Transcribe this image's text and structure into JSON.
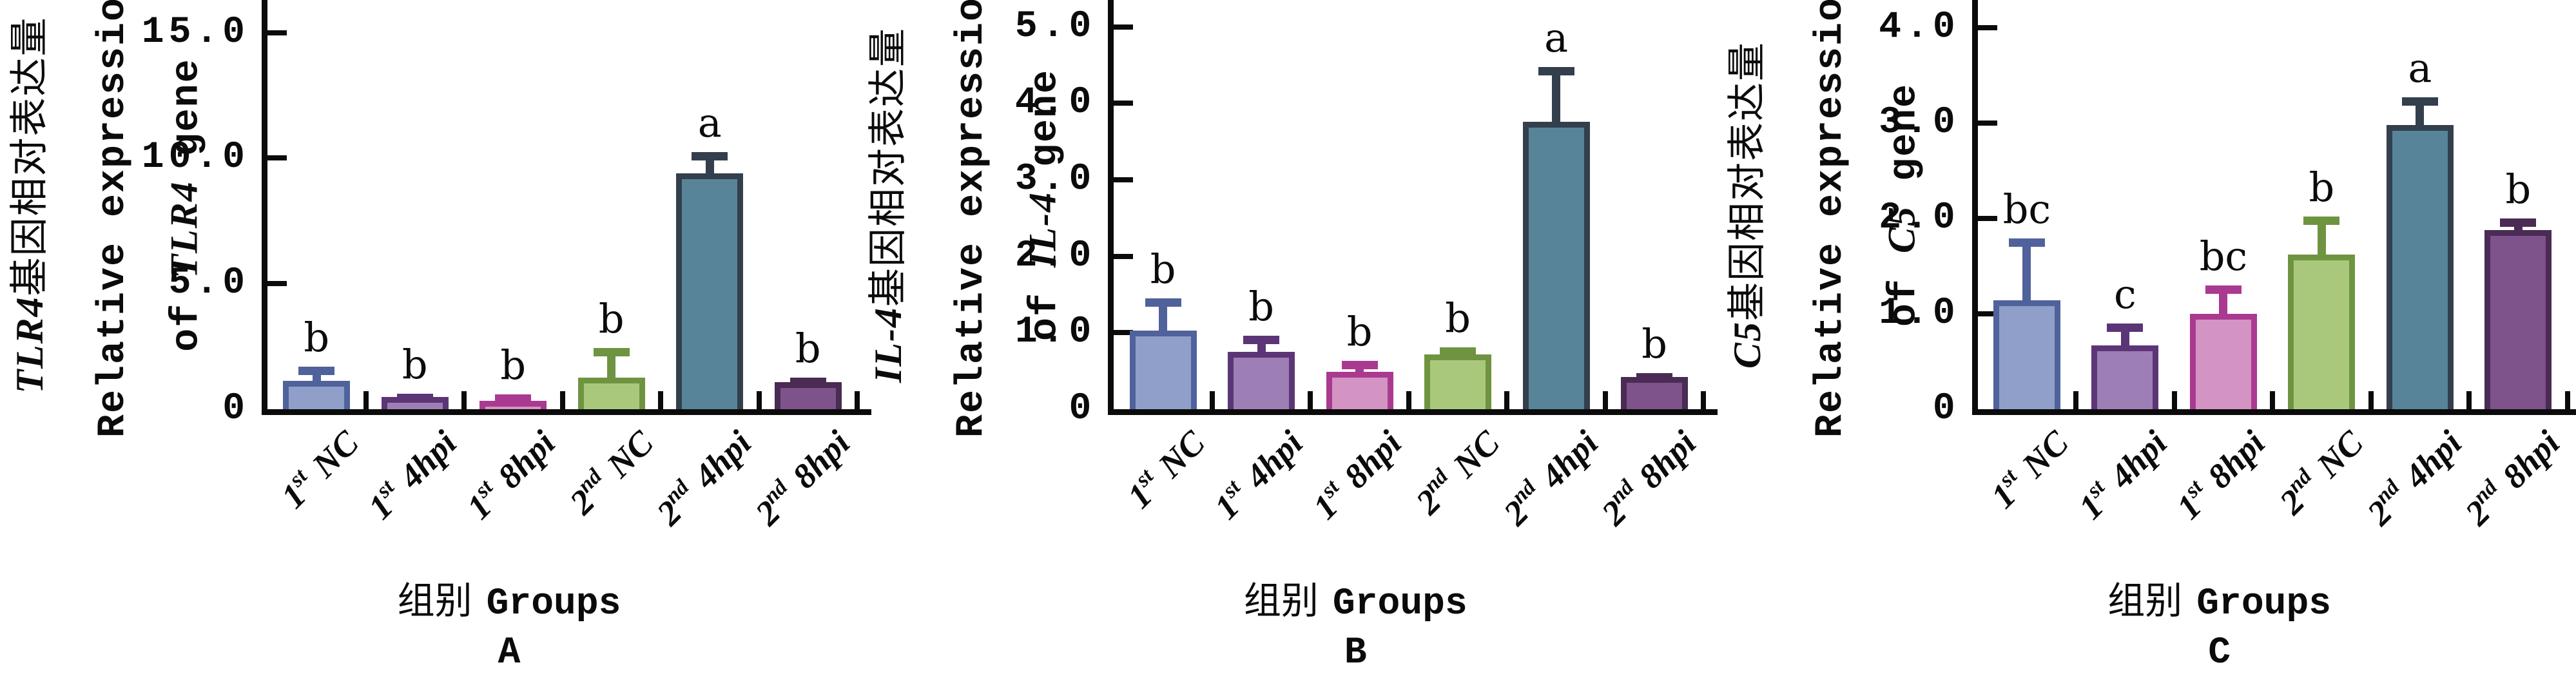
{
  "figure": {
    "background": "#ffffff",
    "axis_color": "#0b0b0b",
    "text_color": "#0b0b0b",
    "xlabel_cn": "组别",
    "xlabel_en": "Groups",
    "ylabel_en_line": "Relative expression",
    "ylabel_of": "of",
    "ylabel_gene_word": "gene",
    "ylabel_cn_suffix": "基因相对表达量"
  },
  "x_tick_labels": [
    {
      "num": "1",
      "sup": "st",
      "group": "NC"
    },
    {
      "num": "1",
      "sup": "st",
      "group": "4hpi"
    },
    {
      "num": "1",
      "sup": "st",
      "group": "8hpi"
    },
    {
      "num": "2",
      "sup": "nd",
      "group": "NC"
    },
    {
      "num": "2",
      "sup": "nd",
      "group": "4hpi"
    },
    {
      "num": "2",
      "sup": "nd",
      "group": "8hpi"
    }
  ],
  "bar_colors": {
    "fills": [
      "#8F9FC9",
      "#9D7FB5",
      "#D494C3",
      "#AAC87B",
      "#578499",
      "#7E528B"
    ],
    "borders": [
      "#50629B",
      "#5C3576",
      "#A93A90",
      "#6F9441",
      "#333F4C",
      "#4A2B54"
    ]
  },
  "chart_data": [
    {
      "panel_letter": "A",
      "type": "bar",
      "gene": "TLR4",
      "ylabel_cn": "TLR4基因相对表达量",
      "ylabel_en": "Relative expression of TLR4 gene",
      "xlabel": "组别 Groups",
      "categories": [
        "1st NC",
        "1st 4hpi",
        "1st 8hpi",
        "2nd NC",
        "2nd 4hpi",
        "2nd 8hpi"
      ],
      "values": [
        1.13,
        0.48,
        0.33,
        1.25,
        9.4,
        1.08
      ],
      "error_tops": [
        1.7,
        0.62,
        0.6,
        2.45,
        10.25,
        1.27
      ],
      "sig_letters": [
        "b",
        "b",
        "b",
        "b",
        "a",
        "b"
      ],
      "yticks": [
        {
          "label": "0",
          "value": 0
        },
        {
          "label": "5.0",
          "value": 5
        },
        {
          "label": "10.0",
          "value": 10
        },
        {
          "label": "15.0",
          "value": 15
        }
      ],
      "ylim": [
        0,
        16.3
      ],
      "grid": false,
      "legend": "none"
    },
    {
      "panel_letter": "B",
      "type": "bar",
      "gene": "IL-4",
      "ylabel_cn": "IL-4基因相对表达量",
      "ylabel_en": "Relative expression of IL-4 gene",
      "xlabel": "组别 Groups",
      "categories": [
        "1st NC",
        "1st 4hpi",
        "1st 8hpi",
        "2nd NC",
        "2nd 4hpi",
        "2nd 8hpi"
      ],
      "values": [
        1.03,
        0.75,
        0.49,
        0.72,
        3.76,
        0.42
      ],
      "error_tops": [
        1.45,
        0.96,
        0.63,
        0.81,
        4.47,
        0.47
      ],
      "sig_letters": [
        "b",
        "b",
        "b",
        "b",
        "a",
        "b"
      ],
      "yticks": [
        {
          "label": "0",
          "value": 0
        },
        {
          "label": "1.0",
          "value": 1
        },
        {
          "label": "2.0",
          "value": 2
        },
        {
          "label": "3.0",
          "value": 3
        },
        {
          "label": "4.0",
          "value": 4
        },
        {
          "label": "5.0",
          "value": 5
        }
      ],
      "ylim": [
        0,
        5.35
      ],
      "grid": false,
      "legend": "none"
    },
    {
      "panel_letter": "C",
      "type": "bar",
      "gene": "C5",
      "ylabel_cn": "C5基因相对表达量",
      "ylabel_en": "Relative expression of C5 gene",
      "xlabel": "组别 Groups",
      "categories": [
        "1st NC",
        "1st 4hpi",
        "1st 8hpi",
        "2nd NC",
        "2nd 4hpi",
        "2nd 8hpi"
      ],
      "values": [
        1.14,
        0.67,
        1.0,
        1.62,
        2.98,
        1.88
      ],
      "error_tops": [
        1.79,
        0.9,
        1.3,
        2.02,
        3.27,
        2.0
      ],
      "sig_letters": [
        "bc",
        "c",
        "bc",
        "b",
        "a",
        "b"
      ],
      "yticks": [
        {
          "label": "0",
          "value": 0
        },
        {
          "label": "1.0",
          "value": 1
        },
        {
          "label": "2.0",
          "value": 2
        },
        {
          "label": "3.0",
          "value": 3
        },
        {
          "label": "4.0",
          "value": 4
        }
      ],
      "ylim": [
        0,
        4.29
      ],
      "grid": false,
      "legend": "none"
    }
  ]
}
